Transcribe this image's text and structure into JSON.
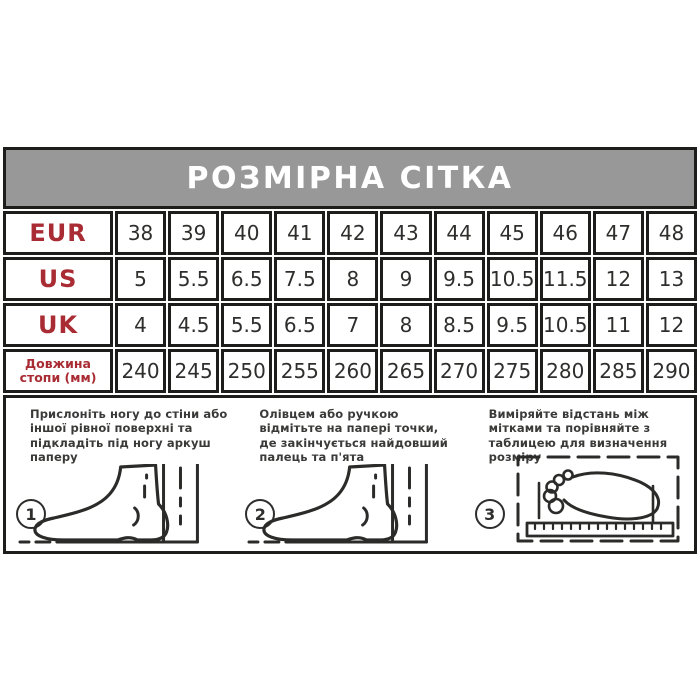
{
  "header": {
    "title": "РОЗМІРНА СІТКА"
  },
  "size_table": {
    "rows": [
      {
        "label": "EUR",
        "small": false,
        "values": [
          "38",
          "39",
          "40",
          "41",
          "42",
          "43",
          "44",
          "45",
          "46",
          "47",
          "48"
        ]
      },
      {
        "label": "US",
        "small": false,
        "values": [
          "5",
          "5.5",
          "6.5",
          "7.5",
          "8",
          "9",
          "9.5",
          "10.5",
          "11.5",
          "12",
          "13"
        ]
      },
      {
        "label": "UK",
        "small": false,
        "values": [
          "4",
          "4.5",
          "5.5",
          "6.5",
          "7",
          "8",
          "8.5",
          "9.5",
          "10.5",
          "11",
          "12"
        ]
      },
      {
        "label": "Довжина стопи (мм)",
        "small": true,
        "values": [
          "240",
          "245",
          "250",
          "255",
          "260",
          "265",
          "270",
          "275",
          "280",
          "285",
          "290"
        ]
      }
    ]
  },
  "instructions": [
    {
      "number": "1",
      "text": "Прислоніть ногу до стіни або іншої рівної поверхні та підкладіть під ногу аркуш паперу",
      "icon": "foot-against-wall-icon"
    },
    {
      "number": "2",
      "text": "Олівцем або ручкою відмітьте на папері точки, де закінчується найдовший палець та п'ята",
      "icon": "foot-against-wall-icon"
    },
    {
      "number": "3",
      "text": "Виміряйте відстань між мітками та порівняйте з таблицею для визначення розміру",
      "icon": "footprint-ruler-icon"
    }
  ],
  "colors": {
    "accent_red": "#a92c34",
    "header_gray": "#989898",
    "border_dark": "#1d1d1b",
    "text_dark": "#2e2e2d"
  }
}
